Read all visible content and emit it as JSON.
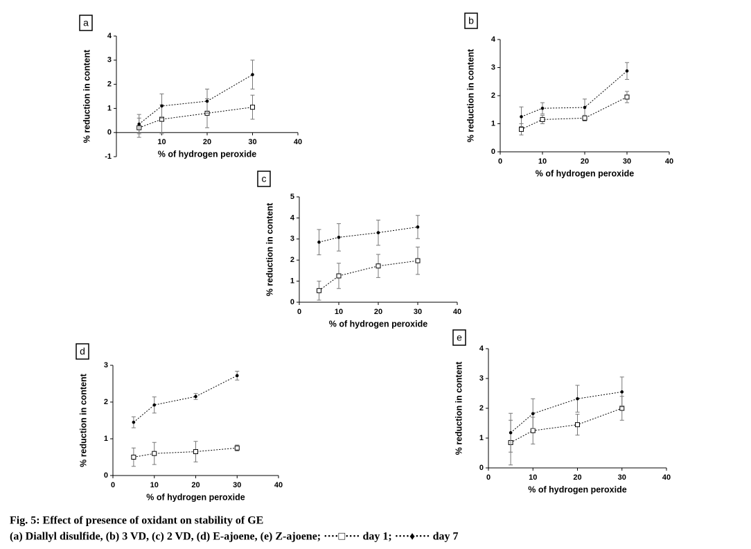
{
  "chart_data": [
    {
      "type": "line",
      "panel_label": "a",
      "xlabel": "% of hydrogen peroxide",
      "ylabel": "% reduction in content",
      "x": [
        5,
        10,
        20,
        30
      ],
      "xlim": [
        0,
        40
      ],
      "xticks": [
        10,
        20,
        30,
        40
      ],
      "ylim": [
        -1,
        4
      ],
      "yticks": [
        -1,
        0,
        1,
        2,
        3,
        4
      ],
      "series": [
        {
          "marker": "square",
          "color": "#000000",
          "values": [
            0.2,
            0.55,
            0.8,
            1.05
          ],
          "errors": [
            0.4,
            0.6,
            0.6,
            0.5
          ]
        },
        {
          "marker": "dot",
          "color": "#000000",
          "values": [
            0.35,
            1.1,
            1.3,
            2.4
          ],
          "errors": [
            0.4,
            0.5,
            0.5,
            0.6
          ]
        }
      ]
    },
    {
      "type": "line",
      "panel_label": "b",
      "xlabel": "% of hydrogen peroxide",
      "ylabel": "% reduction in content",
      "x": [
        5,
        10,
        20,
        30
      ],
      "xlim": [
        0,
        40
      ],
      "xticks": [
        0,
        10,
        20,
        30,
        40
      ],
      "ylim": [
        0,
        4
      ],
      "yticks": [
        0,
        1,
        2,
        3,
        4
      ],
      "series": [
        {
          "marker": "square",
          "color": "#000000",
          "values": [
            0.8,
            1.15,
            1.2,
            1.95
          ],
          "errors": [
            0.2,
            0.15,
            0.1,
            0.2
          ]
        },
        {
          "marker": "dot",
          "color": "#000000",
          "values": [
            1.25,
            1.55,
            1.58,
            2.88
          ],
          "errors": [
            0.35,
            0.2,
            0.3,
            0.3
          ]
        }
      ]
    },
    {
      "type": "line",
      "panel_label": "c",
      "xlabel": "% of hydrogen peroxide",
      "ylabel": "% reduction in content",
      "x": [
        5,
        10,
        20,
        30
      ],
      "xlim": [
        0,
        40
      ],
      "xticks": [
        0,
        10,
        20,
        30,
        40
      ],
      "ylim": [
        0,
        5
      ],
      "yticks": [
        0,
        1,
        2,
        3,
        4,
        5
      ],
      "series": [
        {
          "marker": "square",
          "color": "#000000",
          "values": [
            0.55,
            1.25,
            1.72,
            1.97
          ],
          "errors": [
            0.45,
            0.6,
            0.55,
            0.65
          ]
        },
        {
          "marker": "dot",
          "color": "#000000",
          "values": [
            2.85,
            3.08,
            3.3,
            3.57
          ],
          "errors": [
            0.6,
            0.65,
            0.6,
            0.55
          ]
        }
      ]
    },
    {
      "type": "line",
      "panel_label": "d",
      "xlabel": "% of hydrogen peroxide",
      "ylabel": "% reduction in content",
      "x": [
        5,
        10,
        20,
        30
      ],
      "xlim": [
        0,
        40
      ],
      "xticks": [
        0,
        10,
        20,
        30,
        40
      ],
      "ylim": [
        0,
        3
      ],
      "yticks": [
        0,
        1,
        2,
        3
      ],
      "series": [
        {
          "marker": "square",
          "color": "#000000",
          "values": [
            0.5,
            0.6,
            0.65,
            0.75
          ],
          "errors": [
            0.25,
            0.3,
            0.28,
            0.08
          ]
        },
        {
          "marker": "dot",
          "color": "#000000",
          "values": [
            1.45,
            1.92,
            2.15,
            2.72
          ],
          "errors": [
            0.15,
            0.22,
            0.08,
            0.12
          ]
        }
      ]
    },
    {
      "type": "line",
      "panel_label": "e",
      "xlabel": "% of hydrogen peroxide",
      "ylabel": "% reduction in content",
      "x": [
        5,
        10,
        20,
        30
      ],
      "xlim": [
        0,
        40
      ],
      "xticks": [
        0,
        10,
        20,
        30,
        40
      ],
      "ylim": [
        0,
        4
      ],
      "yticks": [
        0,
        1,
        2,
        3,
        4
      ],
      "series": [
        {
          "marker": "square",
          "color": "#000000",
          "values": [
            0.85,
            1.25,
            1.45,
            2.0
          ],
          "errors": [
            0.75,
            0.45,
            0.35,
            0.4
          ]
        },
        {
          "marker": "dot",
          "color": "#000000",
          "values": [
            1.18,
            1.82,
            2.32,
            2.55
          ],
          "errors": [
            0.65,
            0.5,
            0.45,
            0.5
          ]
        }
      ]
    }
  ],
  "caption": {
    "title": "Fig. 5: Effect of presence of oxidant on stability of GE",
    "text": "(a) Diallyl disulfide, (b) 3 VD, (c) 2 VD, (d) E-ajoene, (e) Z-ajoene; ····□···· day 1; ····♦···· day 7"
  }
}
